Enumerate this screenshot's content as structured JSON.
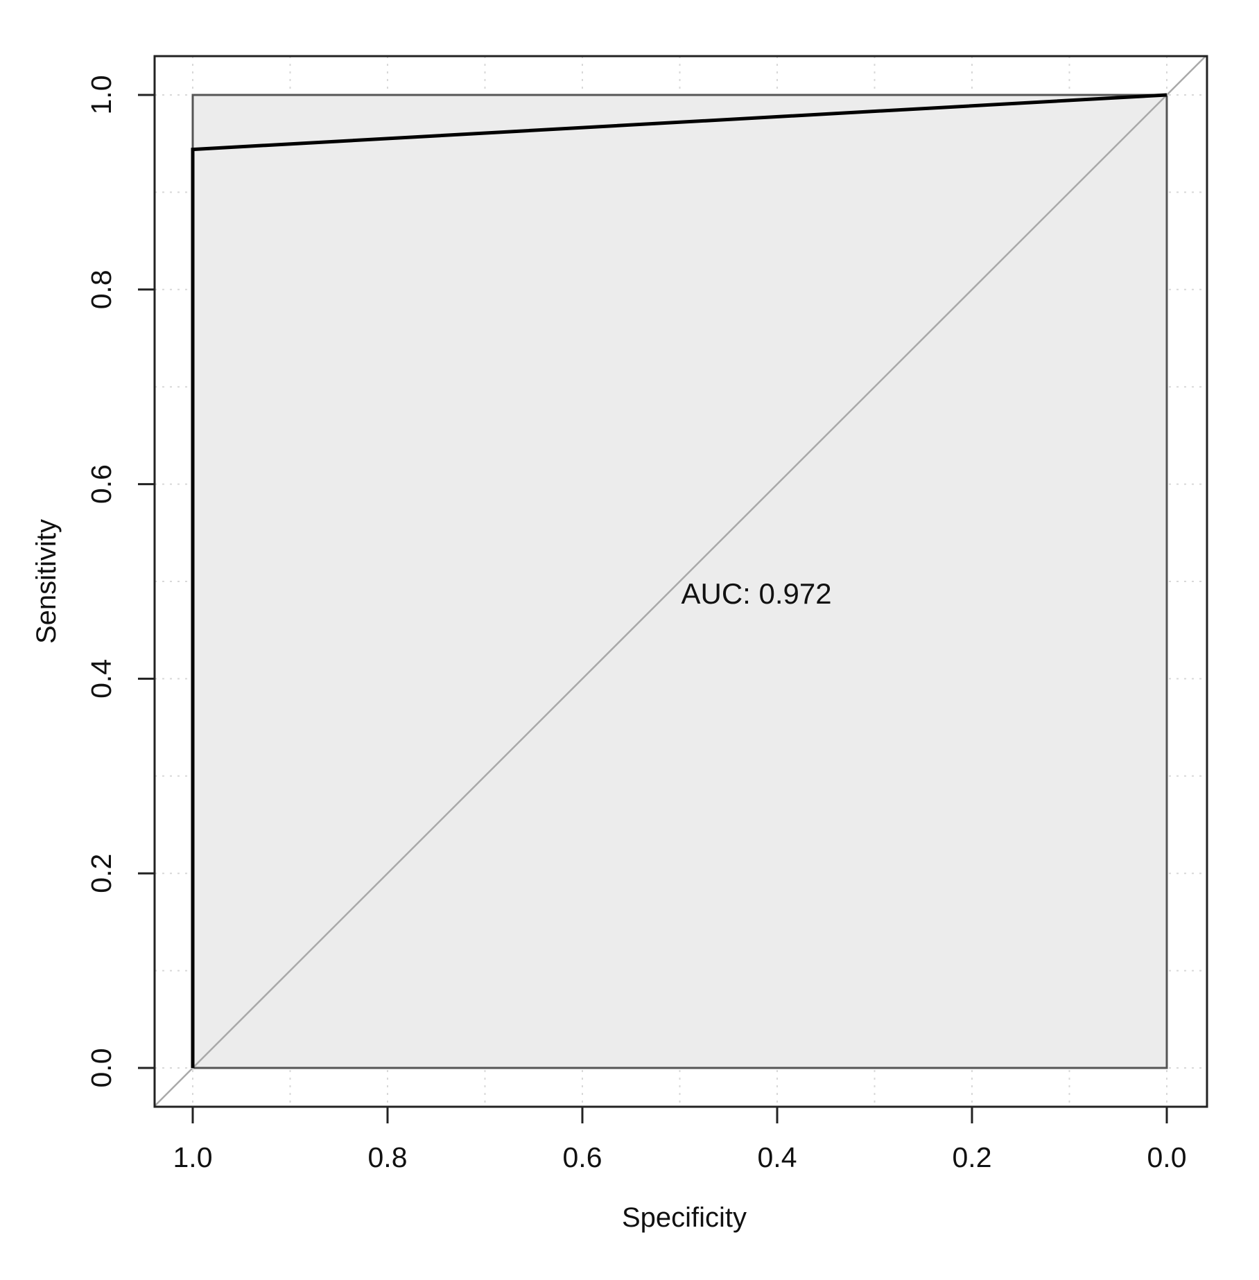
{
  "chart_data": {
    "type": "line",
    "title": "",
    "xlabel": "Specificity",
    "ylabel": "Sensitivity",
    "xlim": [
      1.0,
      0.0
    ],
    "ylim": [
      0.0,
      1.0
    ],
    "x_reversed": true,
    "grid": true,
    "x_ticks": [
      "1.0",
      "0.8",
      "0.6",
      "0.4",
      "0.2",
      "0.0"
    ],
    "y_ticks": [
      "0.0",
      "0.2",
      "0.4",
      "0.6",
      "0.8",
      "1.0"
    ],
    "series": [
      {
        "x": [
          1.0,
          1.0,
          0.0
        ],
        "y": [
          0.0,
          0.944,
          1.0
        ],
        "color": "#000000"
      }
    ],
    "auc_polygon": {
      "x": [
        1.0,
        1.0,
        0.0,
        0.0
      ],
      "y": [
        0.0,
        1.0,
        1.0,
        0.0
      ],
      "fill": "#ececec"
    },
    "reference_line": {
      "x": [
        1.0,
        0.0
      ],
      "y": [
        0.0,
        1.0
      ],
      "color": "#a9a9a9"
    },
    "annotations": [
      {
        "text": "AUC: 0.972",
        "x": 0.5,
        "y": 0.48
      }
    ]
  }
}
